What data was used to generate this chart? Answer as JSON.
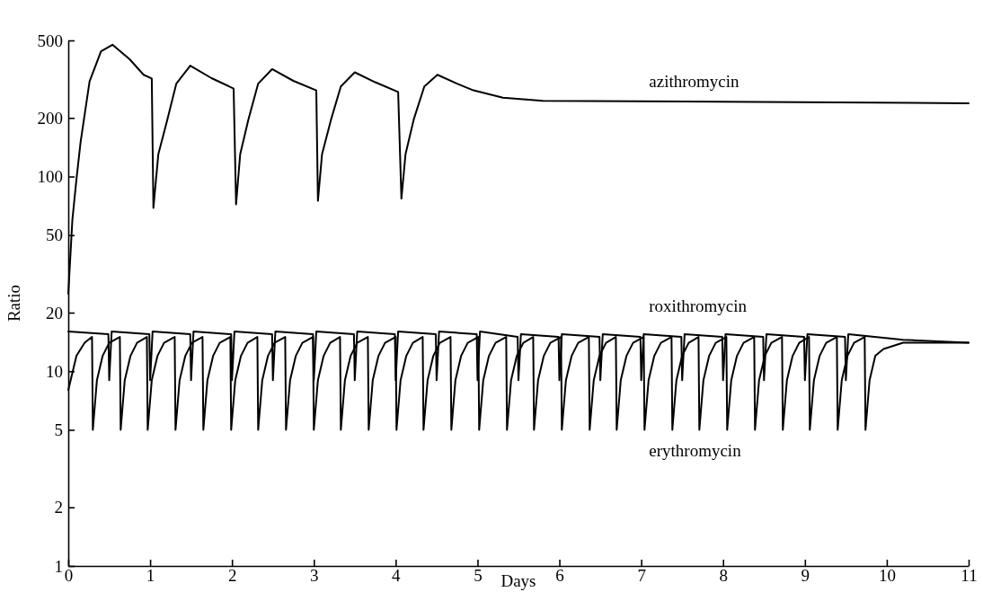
{
  "chart_data": {
    "type": "line",
    "xlabel": "Days",
    "ylabel": "Ratio",
    "xlim": [
      0,
      11
    ],
    "xticks": [
      0,
      1,
      2,
      3,
      4,
      5,
      6,
      7,
      8,
      9,
      10,
      11
    ],
    "ylim": [
      1,
      500
    ],
    "yticks": [
      1,
      2,
      5,
      10,
      20,
      50,
      100,
      200,
      500
    ],
    "log": "y",
    "grid": false,
    "legend": false,
    "marker": "none",
    "line_style": "solid",
    "series": [
      {
        "name": "azithromycin",
        "color": "#000000",
        "x": [
          0,
          0.05,
          0.1,
          0.15,
          0.26,
          0.4,
          0.54,
          0.75,
          0.92,
          1.02,
          1.04,
          1.1,
          1.21,
          1.32,
          1.49,
          1.75,
          2.02,
          2.05,
          2.1,
          2.2,
          2.32,
          2.49,
          2.75,
          3.03,
          3.05,
          3.1,
          3.21,
          3.33,
          3.5,
          3.75,
          4.03,
          4.07,
          4.12,
          4.22,
          4.35,
          4.51,
          4.75,
          4.95,
          5.31,
          5.8,
          8,
          11
        ],
        "values": [
          25,
          60,
          97,
          150,
          308,
          440,
          475,
          400,
          333,
          319,
          69,
          130,
          196,
          300,
          371,
          320,
          283,
          72,
          130,
          196,
          300,
          356,
          310,
          277,
          75,
          130,
          196,
          290,
          343,
          305,
          272,
          77,
          130,
          196,
          290,
          333,
          300,
          277,
          254,
          245,
          242,
          238
        ]
      },
      {
        "name": "roxithromycin",
        "color": "#000000",
        "x": [
          0,
          0.49,
          0.5,
          0.53,
          0.99,
          1,
          1.03,
          1.49,
          1.5,
          1.53,
          1.99,
          2,
          2.03,
          2.49,
          2.5,
          2.53,
          2.99,
          3,
          3.03,
          3.49,
          3.5,
          3.53,
          3.99,
          4,
          4.03,
          4.49,
          4.5,
          4.53,
          4.99,
          5,
          5.03,
          5.49,
          5.5,
          5.53,
          5.99,
          6,
          6.03,
          6.49,
          6.5,
          6.53,
          6.99,
          7,
          7.03,
          7.49,
          7.5,
          7.53,
          7.99,
          8,
          8.03,
          8.49,
          8.5,
          8.53,
          8.99,
          9,
          9.03,
          9.49,
          9.5,
          9.53,
          10.2,
          11
        ],
        "values": [
          16,
          15.5,
          9,
          16,
          15.5,
          9,
          16,
          15.5,
          9,
          16,
          15.5,
          9,
          16,
          15.5,
          9,
          16,
          15.5,
          9,
          16,
          15.5,
          9,
          16,
          15.5,
          9,
          16,
          15.5,
          9,
          16,
          15.5,
          9,
          16,
          15,
          9,
          15.5,
          15,
          9,
          15.5,
          15,
          9,
          15.5,
          15,
          9,
          15.5,
          15,
          9,
          15.5,
          15,
          9,
          15.5,
          15,
          9,
          15.5,
          15,
          9,
          15.5,
          15,
          9,
          15.5,
          14.5,
          14
        ]
      },
      {
        "name": "erythromycin",
        "color": "#000000",
        "x": [
          0,
          0.1,
          0.2,
          0.29,
          0.3,
          0.35,
          0.42,
          0.5,
          0.63,
          0.64,
          0.69,
          0.76,
          0.84,
          0.96,
          0.97,
          1.02,
          1.09,
          1.17,
          1.3,
          1.31,
          1.36,
          1.43,
          1.51,
          1.64,
          1.65,
          1.7,
          1.77,
          1.85,
          1.98,
          1.99,
          2.04,
          2.11,
          2.19,
          2.31,
          2.32,
          2.37,
          2.44,
          2.52,
          2.65,
          2.66,
          2.71,
          2.78,
          2.86,
          2.99,
          3,
          3.05,
          3.12,
          3.2,
          3.32,
          3.33,
          3.38,
          3.45,
          3.53,
          3.66,
          3.67,
          3.72,
          3.79,
          3.87,
          4,
          4.01,
          4.06,
          4.13,
          4.21,
          4.33,
          4.34,
          4.39,
          4.46,
          4.54,
          4.67,
          4.68,
          4.73,
          4.8,
          4.88,
          5.01,
          5.02,
          5.07,
          5.14,
          5.22,
          5.35,
          5.36,
          5.41,
          5.48,
          5.56,
          5.68,
          5.69,
          5.74,
          5.81,
          5.89,
          6.02,
          6.03,
          6.08,
          6.15,
          6.23,
          6.36,
          6.37,
          6.42,
          6.49,
          6.57,
          6.69,
          6.7,
          6.75,
          6.82,
          6.9,
          7.03,
          7.04,
          7.09,
          7.16,
          7.24,
          7.37,
          7.38,
          7.43,
          7.5,
          7.58,
          7.7,
          7.71,
          7.76,
          7.83,
          7.91,
          8.04,
          8.05,
          8.1,
          8.17,
          8.25,
          8.38,
          8.39,
          8.44,
          8.51,
          8.59,
          8.72,
          8.73,
          8.78,
          8.85,
          8.93,
          9.05,
          9.06,
          9.11,
          9.18,
          9.26,
          9.39,
          9.4,
          9.45,
          9.52,
          9.6,
          9.73,
          9.74,
          9.79,
          9.86,
          9.96,
          10.2,
          11
        ],
        "values": [
          8,
          12,
          14,
          15,
          5,
          9,
          12,
          14,
          15,
          5,
          9,
          12,
          14,
          15,
          5,
          9,
          12,
          14,
          15,
          5,
          9,
          12,
          14,
          15,
          5,
          9,
          12,
          14,
          15,
          5,
          9,
          12,
          14,
          15,
          5,
          9,
          12,
          14,
          15,
          5,
          9,
          12,
          14,
          15,
          5,
          9,
          12,
          14,
          15,
          5,
          9,
          12,
          14,
          15,
          5,
          9,
          12,
          14,
          15,
          5,
          9,
          12,
          14,
          15,
          5,
          9,
          12,
          14,
          15,
          5,
          9,
          12,
          14,
          15,
          5,
          9,
          12,
          14,
          15,
          5,
          9,
          12,
          14,
          15,
          5,
          9,
          12,
          14,
          15,
          5,
          9,
          12,
          14,
          15,
          5,
          9,
          12,
          14,
          15,
          5,
          9,
          12,
          14,
          15,
          5,
          9,
          12,
          14,
          15,
          5,
          9,
          12,
          14,
          15,
          5,
          9,
          12,
          14,
          15,
          5,
          9,
          12,
          14,
          15,
          5,
          9,
          12,
          14,
          15,
          5,
          9,
          12,
          14,
          15,
          5,
          9,
          12,
          14,
          15,
          5,
          9,
          12,
          14,
          15,
          5,
          9,
          12,
          13,
          14,
          14
        ]
      }
    ]
  }
}
